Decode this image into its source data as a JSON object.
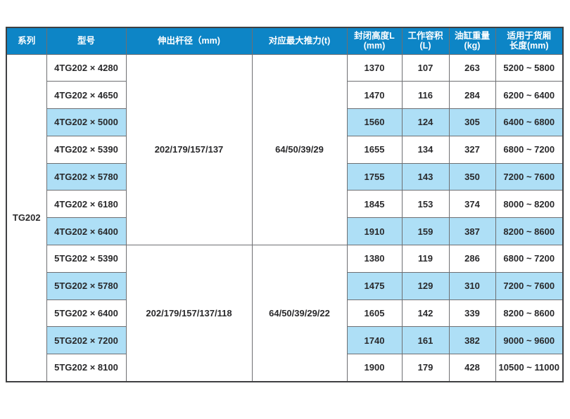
{
  "colors": {
    "header_bg": "#0d85c6",
    "header_text": "#ffffff",
    "stripe_bg": "#aedff6",
    "row_bg": "#ffffff",
    "border_outer": "#3f4042",
    "border_inner": "#6e6f72",
    "text": "#29292b"
  },
  "table": {
    "headers": [
      "系列",
      "型号",
      "伸出杆径（mm)",
      "对应最大推力(t)",
      "封闭高度L\n(mm)",
      "工作容积 (L)",
      "油缸重量(kg)",
      "适用于货厢\n长度(mm)"
    ],
    "series_label": "TG202",
    "groups": [
      {
        "rod_diameter": "202/179/157/137",
        "max_thrust": "64/50/39/29",
        "rows": [
          {
            "model": "4TG202 × 4280",
            "closed_height_mm": "1370",
            "working_volume_l": "107",
            "cylinder_weight_kg": "263",
            "cargo_length_mm": "5200 ~ 5800",
            "highlighted": false
          },
          {
            "model": "4TG202 × 4650",
            "closed_height_mm": "1470",
            "working_volume_l": "116",
            "cylinder_weight_kg": "284",
            "cargo_length_mm": "6200 ~ 6400",
            "highlighted": false
          },
          {
            "model": "4TG202 × 5000",
            "closed_height_mm": "1560",
            "working_volume_l": "124",
            "cylinder_weight_kg": "305",
            "cargo_length_mm": "6400 ~ 6800",
            "highlighted": true
          },
          {
            "model": "4TG202 × 5390",
            "closed_height_mm": "1655",
            "working_volume_l": "134",
            "cylinder_weight_kg": "327",
            "cargo_length_mm": "6800 ~ 7200",
            "highlighted": false
          },
          {
            "model": "4TG202 × 5780",
            "closed_height_mm": "1755",
            "working_volume_l": "143",
            "cylinder_weight_kg": "350",
            "cargo_length_mm": "7200 ~ 7600",
            "highlighted": true
          },
          {
            "model": "4TG202 × 6180",
            "closed_height_mm": "1845",
            "working_volume_l": "153",
            "cylinder_weight_kg": "374",
            "cargo_length_mm": "8000 ~ 8200",
            "highlighted": false
          },
          {
            "model": "4TG202 × 6400",
            "closed_height_mm": "1910",
            "working_volume_l": "159",
            "cylinder_weight_kg": "387",
            "cargo_length_mm": "8200 ~ 8600",
            "highlighted": true
          }
        ]
      },
      {
        "rod_diameter": "202/179/157/137/118",
        "max_thrust": "64/50/39/29/22",
        "rows": [
          {
            "model": "5TG202 × 5390",
            "closed_height_mm": "1380",
            "working_volume_l": "119",
            "cylinder_weight_kg": "286",
            "cargo_length_mm": "6800 ~ 7200",
            "highlighted": false
          },
          {
            "model": "5TG202 × 5780",
            "closed_height_mm": "1475",
            "working_volume_l": "129",
            "cylinder_weight_kg": "310",
            "cargo_length_mm": "7200 ~ 7600",
            "highlighted": true
          },
          {
            "model": "5TG202 × 6400",
            "closed_height_mm": "1605",
            "working_volume_l": "142",
            "cylinder_weight_kg": "339",
            "cargo_length_mm": "8200 ~ 8600",
            "highlighted": false
          },
          {
            "model": "5TG202 × 7200",
            "closed_height_mm": "1740",
            "working_volume_l": "161",
            "cylinder_weight_kg": "382",
            "cargo_length_mm": "9000 ~ 9600",
            "highlighted": true
          },
          {
            "model": "5TG202 × 8100",
            "closed_height_mm": "1900",
            "working_volume_l": "179",
            "cylinder_weight_kg": "428",
            "cargo_length_mm": "10500 ~ 11000",
            "highlighted": false
          }
        ]
      }
    ]
  }
}
